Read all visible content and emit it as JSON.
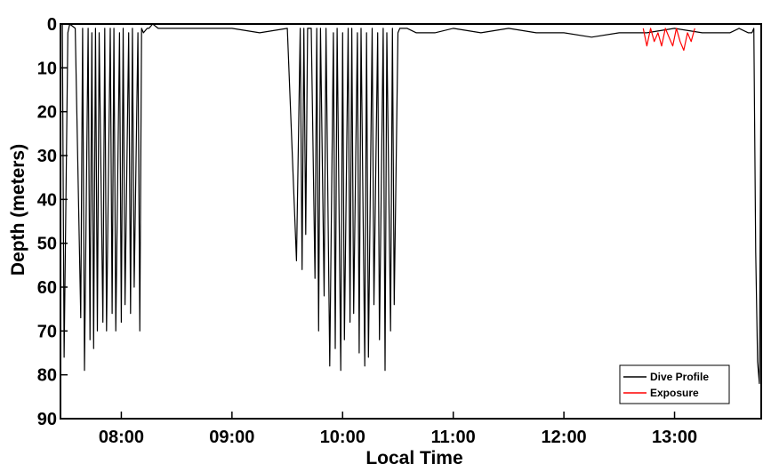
{
  "chart_data": {
    "type": "line",
    "title": "",
    "xlabel": "Local Time",
    "ylabel": "Depth (meters)",
    "xlim": [
      "07:27",
      "13:47"
    ],
    "ylim": [
      0,
      90
    ],
    "y_inverted": true,
    "grid": false,
    "legend_position": "bottom-right",
    "x_ticks": [
      "08:00",
      "09:00",
      "10:00",
      "11:00",
      "12:00",
      "13:00"
    ],
    "y_ticks": [
      0,
      10,
      20,
      30,
      40,
      50,
      60,
      70,
      80,
      90
    ],
    "series": [
      {
        "name": "Dive Profile",
        "color": "#000000",
        "x": [
          "07:28",
          "07:29",
          "07:31",
          "07:32",
          "07:35",
          "07:38",
          "07:39",
          "07:40",
          "07:42",
          "07:43",
          "07:44",
          "07:45",
          "07:46",
          "07:47",
          "07:48",
          "07:50",
          "07:51",
          "07:52",
          "07:54",
          "07:55",
          "07:56",
          "07:57",
          "07:59",
          "08:00",
          "08:01",
          "08:02",
          "08:04",
          "08:05",
          "08:06",
          "08:07",
          "08:09",
          "08:10",
          "08:11",
          "08:12",
          "08:14",
          "08:15",
          "08:17",
          "08:20",
          "08:30",
          "08:45",
          "09:00",
          "09:15",
          "09:30",
          "09:35",
          "09:37",
          "09:38",
          "09:39",
          "09:40",
          "09:41",
          "09:42",
          "09:43",
          "09:45",
          "09:46",
          "09:47",
          "09:48",
          "09:50",
          "09:51",
          "09:53",
          "09:55",
          "09:56",
          "09:57",
          "09:59",
          "10:00",
          "10:01",
          "10:03",
          "10:04",
          "10:05",
          "10:06",
          "10:08",
          "10:09",
          "10:10",
          "10:12",
          "10:13",
          "10:14",
          "10:16",
          "10:17",
          "10:19",
          "10:20",
          "10:22",
          "10:23",
          "10:24",
          "10:26",
          "10:27",
          "10:28",
          "10:30",
          "10:31",
          "10:33",
          "10:34",
          "10:35",
          "10:40",
          "10:50",
          "11:00",
          "11:15",
          "11:30",
          "11:45",
          "12:00",
          "12:15",
          "12:30",
          "12:45",
          "13:00",
          "13:15",
          "13:30",
          "13:35",
          "13:40",
          "13:42",
          "13:43",
          "13:44",
          "13:45",
          "13:46",
          "13:47"
        ],
        "y": [
          0,
          76,
          2,
          0,
          1,
          67,
          1,
          79,
          1,
          72,
          2,
          74,
          1,
          70,
          2,
          68,
          1,
          70,
          1,
          66,
          1,
          70,
          2,
          68,
          1,
          64,
          2,
          66,
          1,
          60,
          2,
          70,
          1,
          2,
          1,
          1,
          0,
          1,
          1,
          1,
          1,
          2,
          1,
          54,
          1,
          56,
          1,
          48,
          1,
          1,
          1,
          58,
          1,
          70,
          1,
          62,
          1,
          78,
          2,
          74,
          1,
          79,
          2,
          72,
          1,
          68,
          1,
          66,
          2,
          75,
          1,
          78,
          2,
          76,
          1,
          64,
          2,
          72,
          1,
          79,
          2,
          70,
          1,
          64,
          2,
          1,
          1,
          1,
          1,
          2,
          2,
          1,
          2,
          1,
          2,
          2,
          3,
          2,
          2,
          1,
          2,
          2,
          1,
          2,
          2,
          1,
          52,
          77,
          82,
          2
        ]
      },
      {
        "name": "Exposure",
        "color": "#ff0000",
        "x": [
          "12:43",
          "12:45",
          "12:47",
          "12:49",
          "12:51",
          "12:53",
          "12:55",
          "12:57",
          "12:59",
          "13:01",
          "13:03",
          "13:05",
          "13:07",
          "13:09",
          "13:11"
        ],
        "y": [
          1,
          5,
          1,
          4,
          2,
          5,
          1,
          3,
          5,
          1,
          4,
          6,
          2,
          4,
          1
        ]
      }
    ]
  }
}
